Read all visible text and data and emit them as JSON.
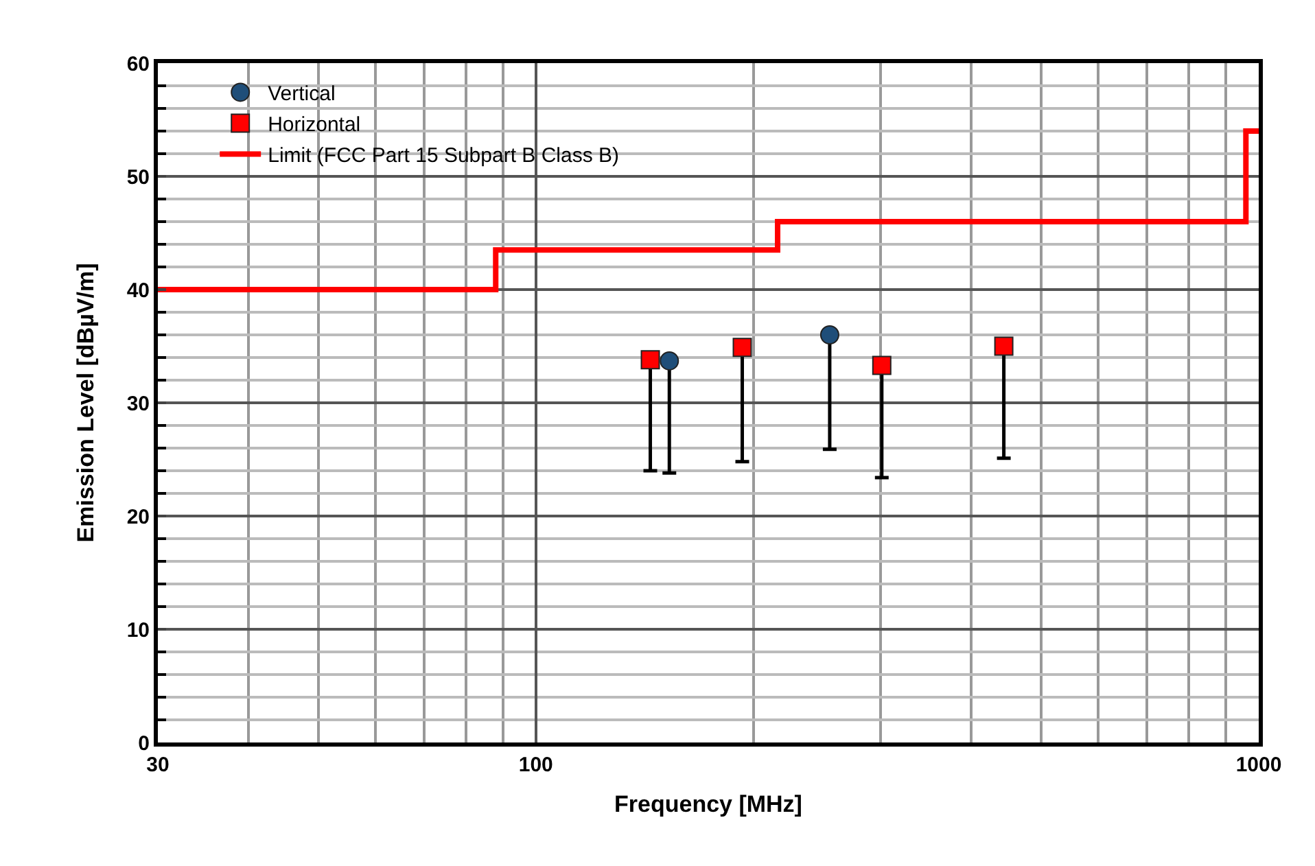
{
  "chart_data": {
    "type": "scatter",
    "xlabel": "Frequency [MHz]",
    "ylabel": "Emission Level [dBµV/m]",
    "log": "x",
    "grid": true,
    "legend": "top left",
    "xlim": [
      30,
      1000
    ],
    "xticks": [
      30,
      100,
      1000
    ],
    "ylim": [
      0,
      60
    ],
    "yticks": [
      0,
      10,
      20,
      30,
      40,
      50,
      60
    ],
    "series": [
      {
        "name": "Vertical",
        "marker": "circle",
        "color": "#1f4e79",
        "x": [
          153,
          255
        ],
        "values": [
          33.7,
          36.0
        ],
        "errors": [
          [
            23.8,
            33.7
          ],
          [
            25.9,
            36.0
          ]
        ]
      },
      {
        "name": "Horizontal",
        "marker": "square",
        "color": "#ff0000",
        "x": [
          144,
          193,
          301,
          444
        ],
        "values": [
          33.8,
          34.9,
          33.3,
          35.0
        ],
        "errors": [
          [
            24.0,
            33.8
          ],
          [
            24.8,
            34.9
          ],
          [
            23.4,
            33.3
          ],
          [
            25.1,
            35.0
          ]
        ]
      },
      {
        "name": "Limit (FCC Part 15 Subpart B Class B)",
        "type": "step",
        "marker": "none",
        "color": "#ff0000",
        "x": [
          30,
          88,
          216,
          960,
          1000
        ],
        "values": [
          40,
          43.5,
          46,
          54,
          54
        ]
      }
    ]
  }
}
